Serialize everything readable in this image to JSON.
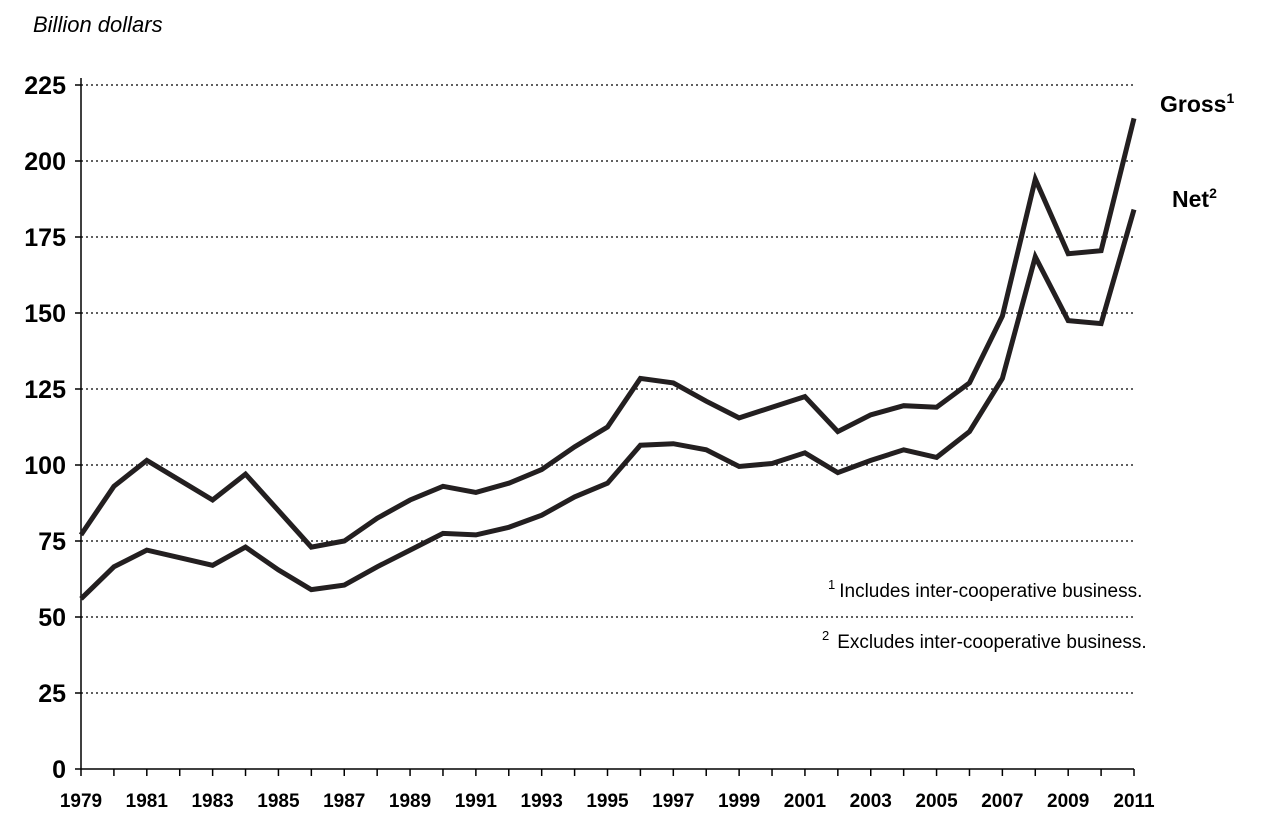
{
  "chart_data": {
    "type": "line",
    "ylabel": "Billion dollars",
    "ylim": [
      0,
      225
    ],
    "yticks": [
      "0",
      "25",
      "50",
      "75",
      "100",
      "125",
      "150",
      "175",
      "200",
      "225"
    ],
    "x": [
      1979,
      1980,
      1981,
      1982,
      1983,
      1984,
      1985,
      1986,
      1987,
      1988,
      1989,
      1990,
      1991,
      1992,
      1993,
      1994,
      1995,
      1996,
      1997,
      1998,
      1999,
      2000,
      2001,
      2002,
      2003,
      2004,
      2005,
      2006,
      2007,
      2008,
      2009,
      2010,
      2011
    ],
    "xtick_labels": [
      "1979",
      "1981",
      "1983",
      "1985",
      "1987",
      "1989",
      "1991",
      "1993",
      "1995",
      "1997",
      "1999",
      "2001",
      "2003",
      "2005",
      "2007",
      "2009",
      "2011"
    ],
    "grid": true,
    "series": [
      {
        "name": "Gross",
        "sup": "1",
        "values": [
          77,
          93,
          101.5,
          95,
          88.5,
          97,
          85,
          73,
          75,
          82.5,
          88.5,
          93,
          91,
          94,
          98.5,
          106,
          112.5,
          128.5,
          127,
          121,
          115.5,
          119,
          122.5,
          111,
          116.5,
          119.5,
          119,
          127,
          149,
          194,
          169.5,
          170.5,
          214
        ]
      },
      {
        "name": "Net",
        "sup": "2",
        "values": [
          56,
          66.5,
          72,
          69.5,
          67,
          73,
          65.5,
          59,
          60.5,
          66.5,
          72,
          77.5,
          77,
          79.5,
          83.5,
          89.5,
          94,
          106.5,
          107,
          105,
          99.5,
          100.5,
          104,
          97.5,
          101.5,
          105,
          102.5,
          111,
          128.5,
          168.5,
          147.5,
          146.5,
          184
        ]
      }
    ],
    "notes": [
      {
        "sup": "1",
        "text": "Includes inter-cooperative business."
      },
      {
        "sup": "2",
        "text": "Excludes inter-cooperative business."
      }
    ]
  }
}
